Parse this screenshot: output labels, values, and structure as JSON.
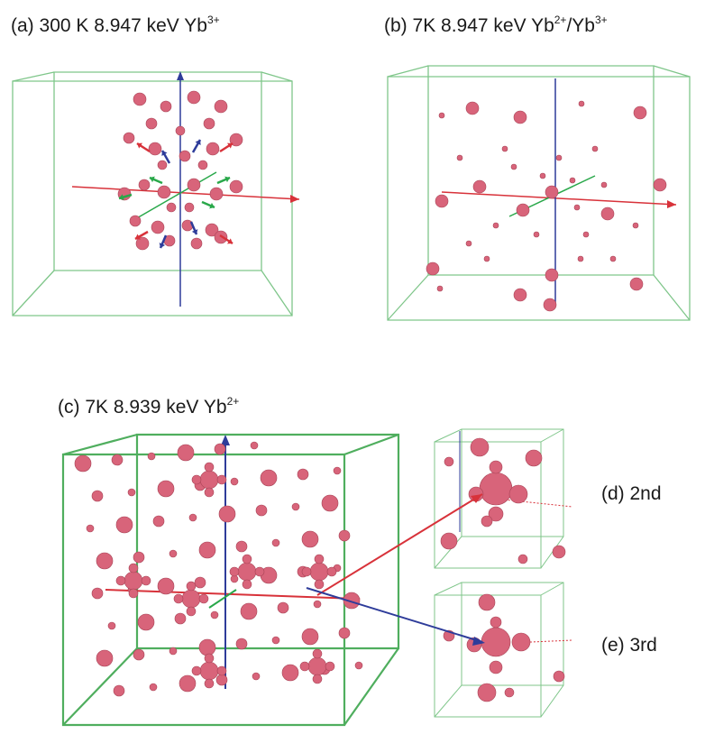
{
  "panels": {
    "a": {
      "tag": "(a)",
      "text": "300 K 8.947 keV Yb",
      "sup": "3+"
    },
    "b": {
      "tag": "(b)",
      "text": "7K 8.947 keV  Yb",
      "sup": "2+",
      "text2": "/Yb",
      "sup2": "3+"
    },
    "c": {
      "tag": "(c)",
      "text": "7K 8.939 keV  Yb",
      "sup": "2+"
    },
    "d": {
      "label": "(d) 2nd"
    },
    "e": {
      "label": "(e) 3rd"
    }
  },
  "colors": {
    "cube_edge": "#7fc68a",
    "atom": "#d8647a",
    "axis_x": "#d8323a",
    "axis_y": "#2e3c9a",
    "axis_z": "#29a84a"
  }
}
